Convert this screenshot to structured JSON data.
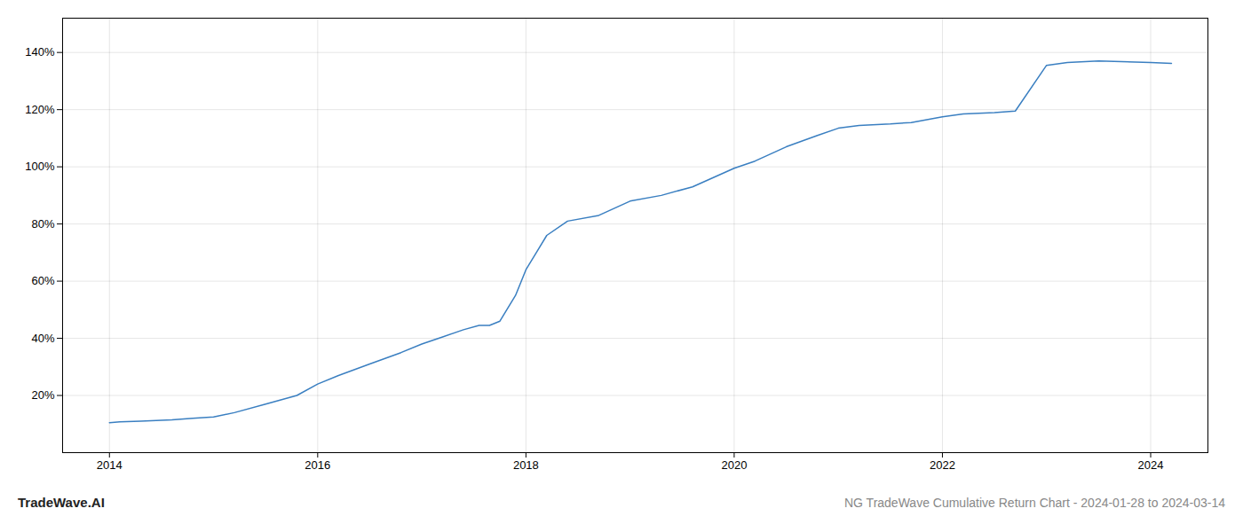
{
  "chart_data": {
    "type": "line",
    "title": "NG TradeWave Cumulative Return Chart - 2024-01-28 to 2024-03-14",
    "annotations": [
      "TradeWave.AI"
    ],
    "x": [
      2014.0,
      2014.1,
      2014.3,
      2014.6,
      2014.8,
      2015.0,
      2015.2,
      2015.5,
      2015.8,
      2016.0,
      2016.2,
      2016.5,
      2016.8,
      2017.0,
      2017.2,
      2017.4,
      2017.55,
      2017.65,
      2017.75,
      2017.9,
      2018.0,
      2018.1,
      2018.2,
      2018.4,
      2018.7,
      2019.0,
      2019.3,
      2019.6,
      2020.0,
      2020.2,
      2020.5,
      2020.8,
      2021.0,
      2021.2,
      2021.5,
      2021.7,
      2022.0,
      2022.2,
      2022.5,
      2022.7,
      2023.0,
      2023.2,
      2023.5,
      2024.0,
      2024.2
    ],
    "values": [
      10.5,
      10.8,
      11.0,
      11.5,
      12.0,
      12.5,
      14.0,
      17.0,
      20.0,
      24.0,
      27.0,
      31.0,
      35.0,
      38.0,
      40.5,
      43.0,
      44.5,
      44.5,
      46.0,
      55.0,
      64.0,
      70.0,
      76.0,
      81.0,
      83.0,
      88.0,
      90.0,
      93.0,
      99.5,
      102.0,
      107.0,
      111.0,
      113.5,
      114.5,
      115.0,
      115.5,
      117.5,
      118.5,
      119.0,
      119.5,
      135.5,
      136.5,
      137.0,
      136.5,
      136.2
    ],
    "color": "#3a7fc1",
    "xlim": [
      2013.55,
      2024.55
    ],
    "ylim": [
      0,
      152
    ],
    "xticks": [
      2014,
      2016,
      2018,
      2020,
      2022,
      2024
    ],
    "yticks": [
      {
        "value": 20,
        "label": "20%"
      },
      {
        "value": 40,
        "label": "40%"
      },
      {
        "value": 60,
        "label": "60%"
      },
      {
        "value": 80,
        "label": "80%"
      },
      {
        "value": 100,
        "label": "100%"
      },
      {
        "value": 120,
        "label": "120%"
      },
      {
        "value": 140,
        "label": "140%"
      }
    ],
    "grid": true
  }
}
